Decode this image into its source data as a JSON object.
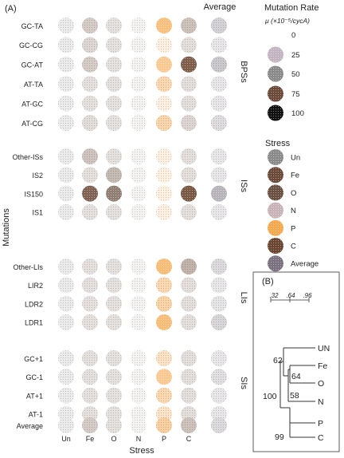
{
  "panel_a_label": "(A)",
  "panel_b_label": "(B)",
  "chart_data": [
    {
      "type": "heatmap",
      "xlabel": "Stress",
      "ylabel": "Mutations",
      "columns": [
        "Un",
        "Fe",
        "O",
        "N",
        "P",
        "C"
      ],
      "average_column_label": "Average",
      "groups": [
        {
          "name": "BPSs",
          "rows": [
            "GC-TA",
            "GC-CG",
            "GC-AT",
            "AT-TA",
            "AT-GC",
            "AT-CG"
          ]
        },
        {
          "name": "ISs",
          "rows": [
            "Other-ISs",
            "IS2",
            "IS150",
            "IS1"
          ]
        },
        {
          "name": "LIs",
          "rows": [
            "Other-LIs",
            "LIR2",
            "LDR2",
            "LDR1"
          ]
        },
        {
          "name": "SIs",
          "rows": [
            "GC+1",
            "GC-1",
            "AT+1",
            "AT-1"
          ]
        }
      ],
      "average_row_label": "Average",
      "values": {
        "GC-TA": [
          3,
          12,
          3,
          2,
          60,
          15,
          14
        ],
        "GC-CG": [
          2,
          8,
          2,
          2,
          3,
          3,
          3
        ],
        "GC-AT": [
          3,
          12,
          4,
          3,
          45,
          80,
          20
        ],
        "AT-TA": [
          2,
          3,
          2,
          2,
          25,
          4,
          5
        ],
        "AT-GC": [
          2,
          2,
          2,
          2,
          3,
          3,
          2
        ],
        "AT-CG": [
          3,
          6,
          3,
          3,
          28,
          8,
          9
        ],
        "Other-ISs": [
          2,
          15,
          2,
          2,
          2,
          3,
          4
        ],
        "IS2": [
          2,
          3,
          20,
          2,
          2,
          3,
          5
        ],
        "IS150": [
          5,
          80,
          60,
          3,
          4,
          85,
          35
        ],
        "IS1": [
          2,
          2,
          2,
          2,
          3,
          3,
          3
        ],
        "Other-LIs": [
          3,
          3,
          3,
          3,
          65,
          22,
          10
        ],
        "LIR2": [
          3,
          3,
          3,
          3,
          25,
          4,
          5
        ],
        "LDR2": [
          3,
          3,
          3,
          3,
          30,
          4,
          6
        ],
        "LDR1": [
          3,
          3,
          3,
          3,
          65,
          4,
          12
        ],
        "GC+1": [
          2,
          2,
          2,
          2,
          15,
          4,
          3
        ],
        "GC-1": [
          2,
          3,
          3,
          3,
          45,
          4,
          8
        ],
        "AT+1": [
          2,
          3,
          2,
          2,
          25,
          4,
          5
        ],
        "AT-1": [
          2,
          2,
          2,
          2,
          14,
          3,
          3
        ]
      },
      "average_values": [
        3,
        12,
        5,
        4,
        35,
        15,
        10
      ],
      "colors": {
        "Un": "#8a8a8a",
        "Fe": "#6b4a3a",
        "O": "#6a5040",
        "N": "#c8b4b8",
        "P": "#f5a84e",
        "C": "#6a4630",
        "Average": "#7a7080"
      },
      "rate_legend": {
        "title": "Mutation Rate",
        "unit": "μ (×10⁻⁵/cycA)",
        "values": [
          0,
          25,
          50,
          75,
          100
        ],
        "colors": [
          "#ffffff",
          "#c3b4c2",
          "#8a8a8a",
          "#6b4a3a",
          "#111111"
        ]
      },
      "stress_legend": {
        "title": "Stress",
        "items": [
          "Un",
          "Fe",
          "O",
          "N",
          "P",
          "C",
          "Average"
        ]
      }
    },
    {
      "type": "dendrogram",
      "scale_ticks": [
        ".32",
        ".64",
        ".96"
      ],
      "leaves": [
        "UN",
        "Fe",
        "O",
        "N",
        "P",
        "C"
      ],
      "support_values": [
        {
          "label": "62",
          "node": "UN-Fe-O-N"
        },
        {
          "label": "64",
          "node": "Fe-O"
        },
        {
          "label": "58",
          "node": "Fe-O-N"
        },
        {
          "label": "100",
          "node": "root"
        },
        {
          "label": "99",
          "node": "P-C"
        }
      ]
    }
  ]
}
